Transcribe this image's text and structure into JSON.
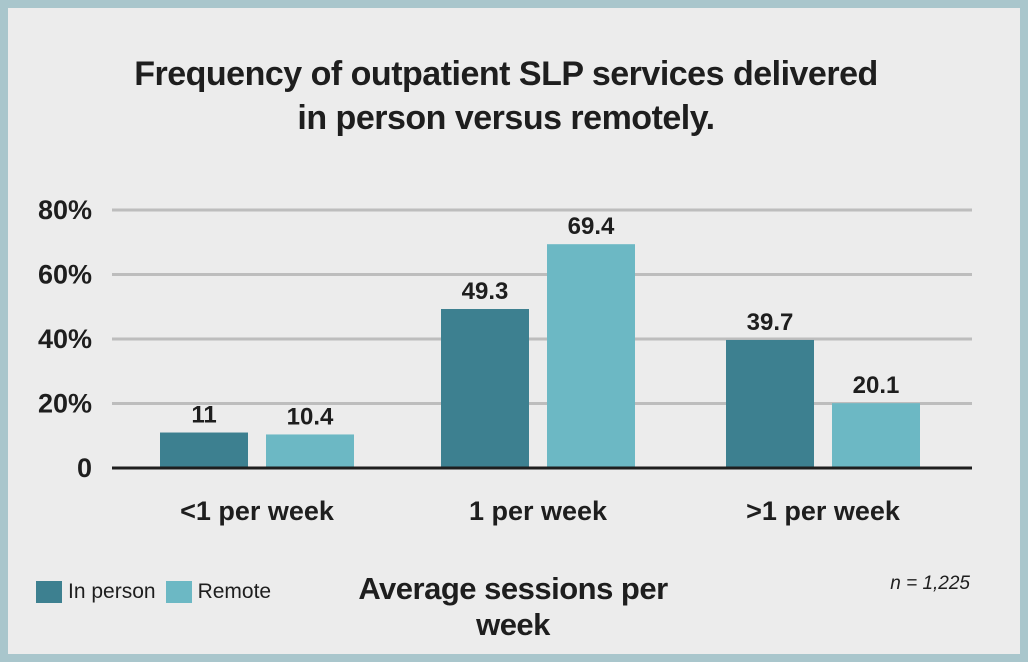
{
  "chart_data": {
    "type": "bar",
    "title": "Frequency of outpatient SLP services delivered in person versus remotely.",
    "title_lines": [
      "Frequency of outpatient SLP services delivered",
      "in person versus remotely."
    ],
    "categories": [
      "<1 per week",
      "1 per week",
      ">1 per week"
    ],
    "series": [
      {
        "name": "In person",
        "values": [
          11,
          49.3,
          39.7
        ],
        "labels": [
          "11",
          "49.3",
          "39.7"
        ],
        "color": "#3d8090"
      },
      {
        "name": "Remote",
        "values": [
          10.4,
          69.4,
          20.1
        ],
        "labels": [
          "10.4",
          "69.4",
          "20.1"
        ],
        "color": "#6cb8c4"
      }
    ],
    "xlabel": "Average sessions per week",
    "ylabel": "",
    "ylim": [
      0,
      80
    ],
    "yticks": [
      0,
      20,
      40,
      60,
      80
    ],
    "ytick_labels": [
      "0",
      "20%",
      "40%",
      "60%",
      "80%"
    ],
    "grid": true,
    "legend": "bottom-left",
    "note": "n = 1,225"
  }
}
